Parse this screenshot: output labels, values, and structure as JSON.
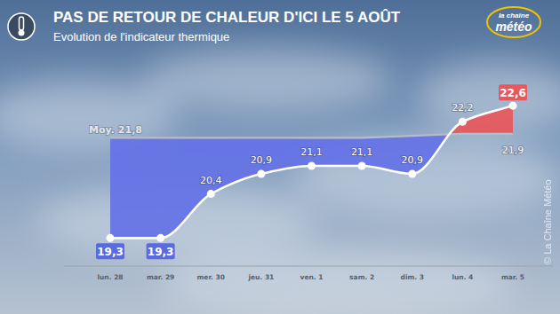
{
  "chart_data": {
    "type": "line",
    "title": "PAS DE RETOUR DE CHALEUR D'ICI LE 5 AOÛT",
    "subtitle": "Evolution de l'indicateur thermique",
    "logo": [
      "la chaîne",
      "météo"
    ],
    "credit": "© La Chaîne Météo",
    "categories": [
      "lun. 28",
      "mar. 29",
      "mer. 30",
      "jeu. 31",
      "ven. 1",
      "sam. 2",
      "dim. 3",
      "lun. 4",
      "mar. 5"
    ],
    "series": [
      {
        "color": "#ffffff",
        "marker": "circle",
        "line_style": "solid",
        "values": [
          19.3,
          19.3,
          20.4,
          20.9,
          21.1,
          21.1,
          20.9,
          22.2,
          22.6
        ],
        "value_labels": [
          "19,3",
          "19,3",
          "20,4",
          "20,9",
          "21,1",
          "21,1",
          "20,9",
          "22,2",
          "22,6"
        ]
      },
      {
        "name": "Moy.",
        "color": "#b9bcc2",
        "marker": "none",
        "line_style": "solid",
        "values": [
          21.8,
          21.8,
          21.8,
          21.8,
          21.8,
          21.8,
          21.85,
          21.9,
          21.9
        ],
        "value_labels": [
          "21,8",
          null,
          null,
          null,
          null,
          null,
          null,
          null,
          "21,9"
        ]
      }
    ],
    "ylim": [
      18.6,
      23.2
    ],
    "tick_labels": "x",
    "grid": false,
    "data_labels": true
  }
}
